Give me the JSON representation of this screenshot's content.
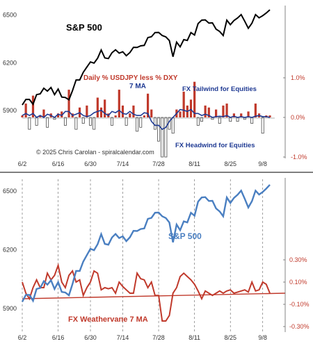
{
  "chart_data": [
    {
      "type": "line",
      "panel": "top",
      "x_dates": [
        "6/2",
        "6/3",
        "6/4",
        "6/5",
        "6/6",
        "6/9",
        "6/10",
        "6/11",
        "6/12",
        "6/13",
        "6/16",
        "6/17",
        "6/18",
        "6/20",
        "6/23",
        "6/24",
        "6/25",
        "6/26",
        "6/27",
        "6/30",
        "7/1",
        "7/2",
        "7/3",
        "7/7",
        "7/8",
        "7/9",
        "7/10",
        "7/11",
        "7/14",
        "7/15",
        "7/16",
        "7/17",
        "7/18",
        "7/21",
        "7/22",
        "7/23",
        "7/24",
        "7/25",
        "7/28",
        "7/29",
        "7/30",
        "7/31",
        "8/1",
        "8/4",
        "8/5",
        "8/6",
        "8/7",
        "8/8",
        "8/11",
        "8/12",
        "8/13",
        "8/14",
        "8/15",
        "8/18",
        "8/19",
        "8/20",
        "8/21",
        "8/22",
        "8/25",
        "8/26",
        "8/27",
        "8/28",
        "8/29",
        "9/2",
        "9/3",
        "9/4",
        "9/5",
        "9/8",
        "9/9",
        "9/10"
      ],
      "x_ticks": [
        "6/2",
        "6/16",
        "6/30",
        "7/14",
        "7/28",
        "8/11",
        "8/25",
        "9/8"
      ],
      "y_ticks": [
        "6500",
        "6200",
        "5900"
      ],
      "y2_ticks": [
        "1.0%",
        "0.0%",
        "-1.0%"
      ],
      "ylim": [
        5600,
        6550
      ],
      "y2lim": [
        -1.0,
        1.0
      ],
      "labels": {
        "sp500": "S&P 500",
        "daily": "Daily % USDJPY less % DXY",
        "ma": "7 MA",
        "tailwind": "FX Tailwind for Equities",
        "headwind": "FX Headwind for Equities",
        "copyright": "© 2025 Chris Carolan - spiralcalendar.com"
      },
      "series": [
        {
          "name": "S&P 500",
          "role": "price",
          "color": "#000000",
          "values": [
            5935,
            5970,
            5970,
            5940,
            6000,
            6005,
            6040,
            6022,
            6045,
            6000,
            6035,
            5985,
            5982,
            5968,
            6025,
            6092,
            6092,
            6140,
            6173,
            6205,
            6198,
            6228,
            6280,
            6230,
            6226,
            6263,
            6281,
            6260,
            6269,
            6244,
            6264,
            6297,
            6296,
            6306,
            6309,
            6358,
            6363,
            6389,
            6390,
            6371,
            6362,
            6339,
            6238,
            6329,
            6300,
            6345,
            6340,
            6389,
            6374,
            6446,
            6467,
            6469,
            6449,
            6450,
            6411,
            6396,
            6371,
            6467,
            6439,
            6465,
            6481,
            6502,
            6460,
            6416,
            6448,
            6502,
            6482,
            6495,
            6512,
            6532
          ]
        },
        {
          "name": "Daily % USDJPY less % DXY",
          "role": "daily_bars",
          "color": "#c0392b",
          "values": [
            0.05,
            0.35,
            -0.3,
            0.55,
            -0.2,
            0.05,
            0.2,
            -0.25,
            0.1,
            -0.05,
            0.1,
            0.15,
            -0.2,
            0.7,
            0.1,
            -0.3,
            0.25,
            -0.15,
            0.3,
            -0.2,
            -0.3,
            0.5,
            0.25,
            0.45,
            0.1,
            -0.2,
            0.05,
            0.7,
            0.3,
            -0.2,
            0.1,
            0.3,
            -0.35,
            -0.25,
            0.05,
            0.6,
            0.2,
            -0.3,
            -0.6,
            -1.0,
            -1.0,
            -0.3,
            -0.4,
            0.2,
            0.15,
            0.65,
            0.3,
            0.45,
            0.9,
            -0.2,
            -0.1,
            0.3,
            0.25,
            -0.05,
            0.2,
            -0.15,
            0.3,
            0.35,
            -0.1,
            0.1,
            -0.1,
            0.1,
            -0.05,
            0.15,
            -0.15,
            0.35,
            0.1,
            -0.4,
            0.05,
            0.05
          ]
        },
        {
          "name": "7 MA",
          "role": "ma_line",
          "color": "#1f3a93",
          "values": [
            0.05,
            0.1,
            0.05,
            0.1,
            0.0,
            0.05,
            0.0,
            0.08,
            0.05,
            0.0,
            0.08,
            0.05,
            0.15,
            0.15,
            0.05,
            0.08,
            0.12,
            0.05,
            0.02,
            0.05,
            0.12,
            0.15,
            0.18,
            0.1,
            0.05,
            0.15,
            0.12,
            0.18,
            0.1,
            0.08,
            0.15,
            0.08,
            0.05,
            0.05,
            0.12,
            0.1,
            -0.1,
            -0.2,
            -0.2,
            -0.3,
            -0.25,
            -0.1,
            0.0,
            0.1,
            0.2,
            0.18,
            0.15,
            0.2,
            0.1,
            0.1,
            0.05,
            0.08,
            0.05,
            0.0,
            0.02,
            0.03,
            0.02,
            0.05,
            0.0,
            0.03,
            0.0,
            0.02,
            0.0,
            0.02,
            0.0,
            0.03,
            0.05,
            0.02,
            0.02,
            0.0
          ]
        }
      ]
    },
    {
      "type": "line",
      "panel": "bottom",
      "x_ticks": [
        "6/2",
        "6/16",
        "6/30",
        "7/14",
        "7/28",
        "8/11",
        "8/25",
        "9/8"
      ],
      "y_ticks": [
        "6500",
        "6200",
        "5900"
      ],
      "y2_ticks": [
        "0.30%",
        "0.10%",
        "-0.10%",
        "-0.30%"
      ],
      "ylim": [
        5780,
        6560
      ],
      "y2lim": [
        -0.35,
        0.45
      ],
      "labels": {
        "sp500": "S&P 500",
        "weathervane": "FX Weathervane 7 MA"
      },
      "series": [
        {
          "name": "S&P 500",
          "role": "price",
          "color": "#4a7fc1",
          "values": [
            5935,
            5970,
            5970,
            5940,
            6000,
            6005,
            6040,
            6022,
            6045,
            6000,
            6035,
            5985,
            5982,
            5968,
            6025,
            6092,
            6092,
            6140,
            6173,
            6205,
            6198,
            6228,
            6280,
            6230,
            6226,
            6263,
            6281,
            6260,
            6269,
            6244,
            6264,
            6297,
            6296,
            6306,
            6309,
            6358,
            6363,
            6389,
            6390,
            6371,
            6362,
            6339,
            6238,
            6329,
            6300,
            6345,
            6340,
            6389,
            6374,
            6446,
            6467,
            6469,
            6449,
            6450,
            6411,
            6396,
            6371,
            6467,
            6439,
            6465,
            6481,
            6502,
            6460,
            6416,
            6448,
            6502,
            6482,
            6495,
            6512,
            6532
          ]
        },
        {
          "name": "FX Weathervane 7 MA",
          "role": "weathervane",
          "color": "#c0392b",
          "values": [
            0.1,
            0.0,
            -0.05,
            0.05,
            0.12,
            0.05,
            0.05,
            0.18,
            0.12,
            0.16,
            0.25,
            0.1,
            0.05,
            0.16,
            0.2,
            0.1,
            0.12,
            -0.02,
            0.05,
            0.1,
            0.2,
            0.18,
            0.03,
            0.05,
            0.04,
            0.05,
            0.0,
            0.1,
            0.06,
            0.03,
            0.0,
            0.0,
            0.18,
            0.13,
            0.12,
            0.05,
            0.1,
            -0.02,
            -0.02,
            -0.25,
            -0.25,
            -0.2,
            0.0,
            0.05,
            0.15,
            0.18,
            0.15,
            0.12,
            0.08,
            0.02,
            -0.05,
            0.02,
            0.0,
            -0.02,
            0.0,
            0.02,
            0.0,
            0.02,
            0.03,
            0.0,
            0.01,
            0.02,
            0.03,
            0.01,
            0.1,
            0.02,
            0.03,
            0.1,
            0.08,
            0.0
          ]
        },
        {
          "name": "",
          "role": "trend",
          "color": "#c0392b",
          "values": [
            -0.05,
            0.0
          ]
        }
      ]
    }
  ],
  "colors": {
    "axis": "#666666",
    "grid_dashed": "#777777",
    "divider": "#333333",
    "red": "#c0392b",
    "navy": "#1f3a93",
    "blue": "#4a7fc1"
  }
}
